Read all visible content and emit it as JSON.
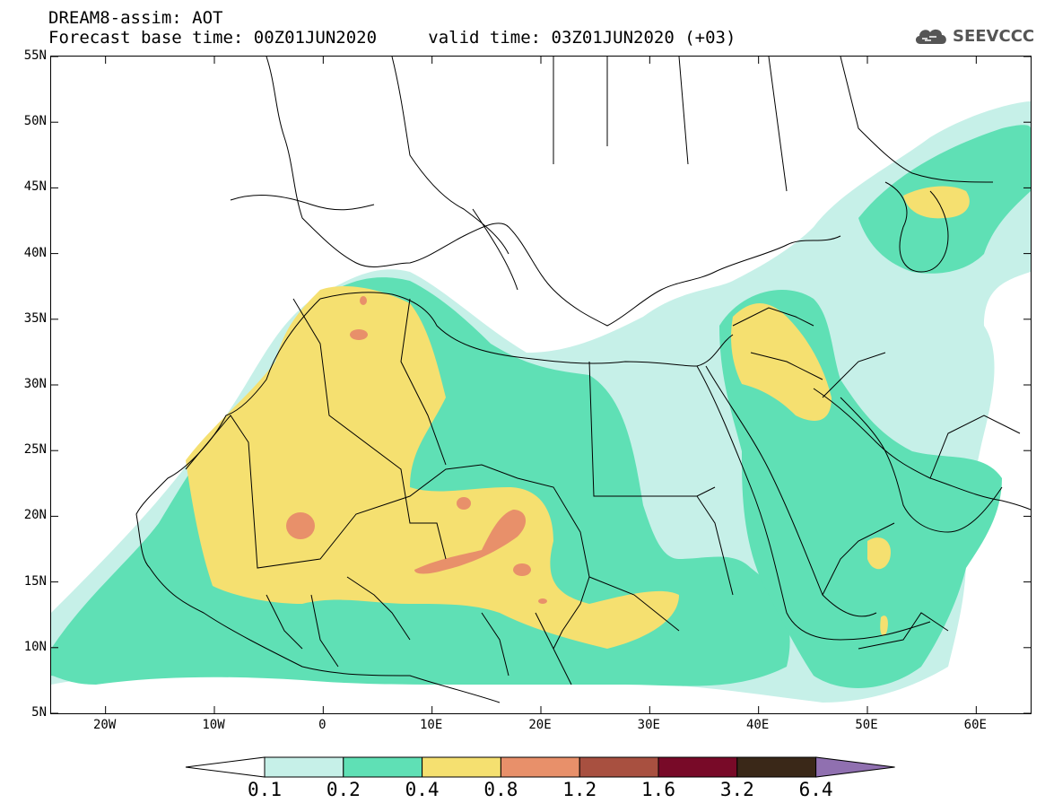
{
  "header": {
    "title_line1": "DREAM8-assim: AOT",
    "forecast_base": "Forecast base time: 00Z01JUN2020",
    "valid_time": "valid time: 03Z01JUN2020 (+03)",
    "logo_text": "SEEVCCC"
  },
  "map": {
    "lat_labels": [
      "55N",
      "50N",
      "45N",
      "40N",
      "35N",
      "30N",
      "25N",
      "20N",
      "15N",
      "10N",
      "5N"
    ],
    "lon_labels": [
      "20W",
      "10W",
      "0",
      "10E",
      "20E",
      "30E",
      "40E",
      "50E",
      "60E"
    ],
    "lat_range": [
      5,
      55
    ],
    "lon_range": [
      -25,
      65
    ]
  },
  "legend": {
    "levels": [
      "0.1",
      "0.2",
      "0.4",
      "0.8",
      "1.2",
      "1.6",
      "3.2",
      "6.4"
    ],
    "colors": [
      "#ffffff",
      "#c6f0e8",
      "#5fe0b5",
      "#f5e070",
      "#e8906a",
      "#a85040",
      "#780a28",
      "#3a2818",
      "#9070b0"
    ],
    "level_colors": {
      "lt_0.1": "#ffffff",
      "0.1_0.2": "#c6f0e8",
      "0.2_0.4": "#5fe0b5",
      "0.4_0.8": "#f5e070",
      "0.8_1.2": "#e8906a",
      "1.2_1.6": "#a85040",
      "1.6_3.2": "#780a28",
      "3.2_6.4": "#3a2818",
      "gt_6.4": "#9070b0"
    }
  }
}
